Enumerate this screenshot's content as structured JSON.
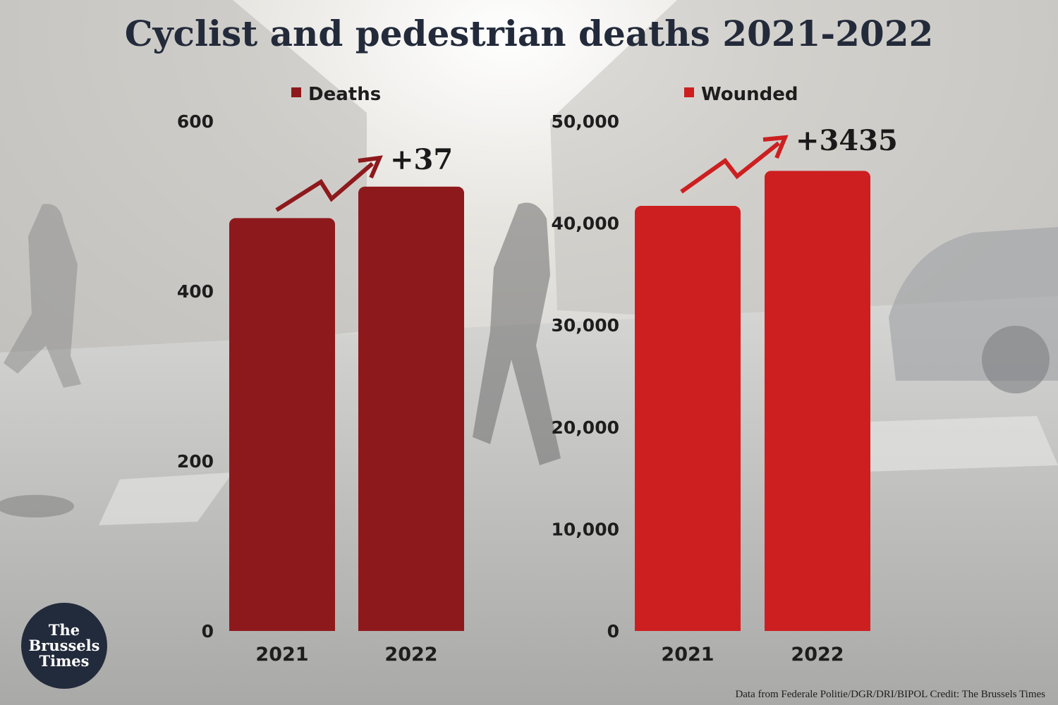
{
  "title": "Cyclist and pedestrian deaths 2021-2022",
  "credit": "Data from Federale Politie/DGR/DRI/BIPOL Credit: The Brussels Times",
  "logo": {
    "line1": "The",
    "line2": "Brussels",
    "line3": "Times"
  },
  "colors": {
    "deaths": "#8e191c",
    "wounded": "#cd1f20",
    "title": "#232b3b",
    "logo_bg": "#222b3b"
  },
  "chart_data": [
    {
      "type": "bar",
      "categories": [
        "2021",
        "2022"
      ],
      "series": [
        {
          "name": "Deaths",
          "values": [
            486,
            523
          ]
        }
      ],
      "ylim": [
        0,
        600
      ],
      "yticks": [
        0,
        200,
        400,
        600
      ],
      "ytick_labels": [
        "0",
        "200",
        "400",
        "600"
      ],
      "legend": "top",
      "grid": false,
      "annotation": "+37",
      "color": "#8e191c"
    },
    {
      "type": "bar",
      "categories": [
        "2021",
        "2022"
      ],
      "series": [
        {
          "name": "Wounded",
          "values": [
            41700,
            45135
          ]
        }
      ],
      "ylim": [
        0,
        50000
      ],
      "yticks": [
        0,
        10000,
        20000,
        30000,
        40000,
        50000
      ],
      "ytick_labels": [
        "0",
        "10,000",
        "20,000",
        "30,000",
        "40,000",
        "50,000"
      ],
      "legend": "top",
      "grid": false,
      "annotation": "+3435",
      "color": "#cd1f20"
    }
  ]
}
